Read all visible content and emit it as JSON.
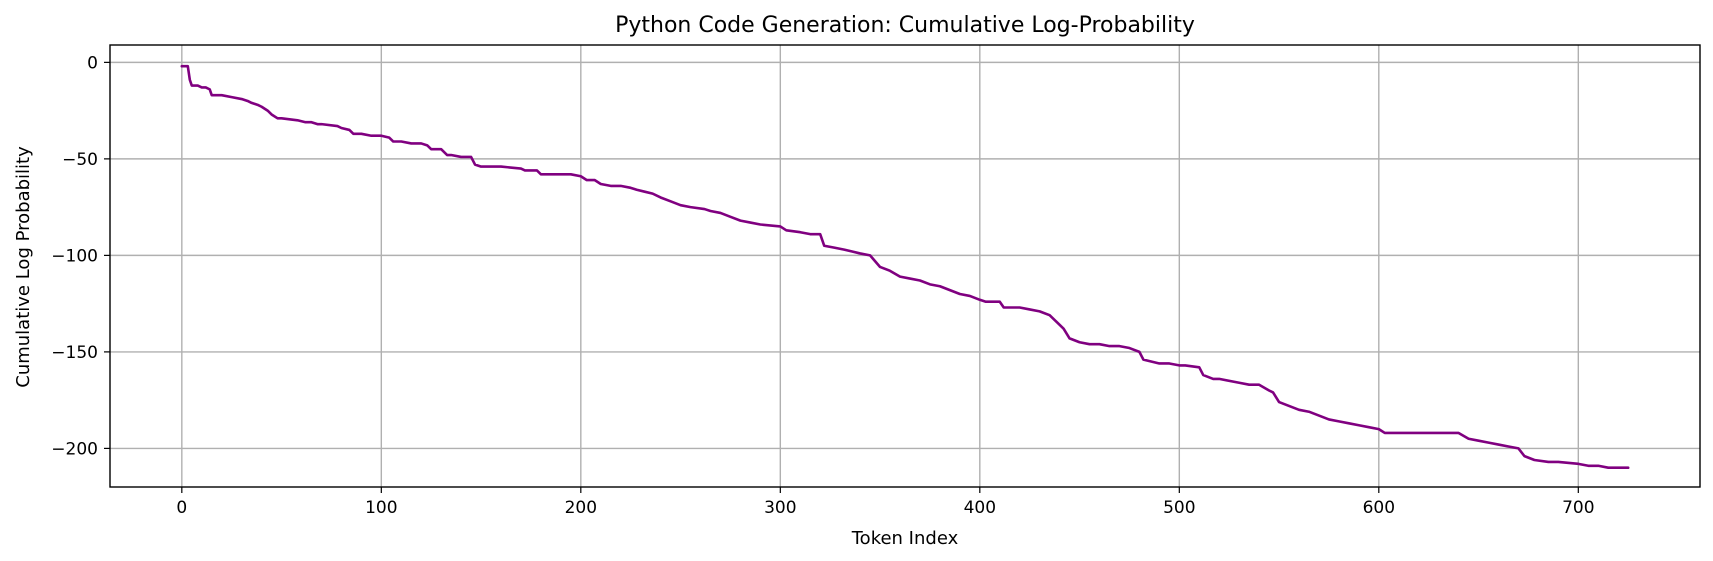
{
  "chart_data": {
    "type": "line",
    "title": "Python Code Generation: Cumulative Log-Probability",
    "xlabel": "Token Index",
    "ylabel": "Cumulative Log Probability",
    "xlim": [
      -36,
      761
    ],
    "ylim": [
      -220,
      9
    ],
    "xticks": [
      0,
      100,
      200,
      300,
      400,
      500,
      600,
      700
    ],
    "yticks": [
      0,
      -50,
      -100,
      -150,
      -200
    ],
    "grid": true,
    "legend": "none",
    "colors": {
      "line": "#800080"
    },
    "series": [
      {
        "x": [
          0,
          2,
          3,
          4,
          5,
          6,
          7,
          8,
          10,
          12,
          14,
          15,
          20,
          25,
          30,
          33,
          35,
          38,
          40,
          43,
          45,
          48,
          50,
          58,
          62,
          65,
          68,
          70,
          78,
          80,
          84,
          86,
          90,
          95,
          100,
          104,
          106,
          110,
          115,
          120,
          123,
          125,
          130,
          133,
          135,
          140,
          145,
          147,
          150,
          160,
          170,
          172,
          178,
          180,
          185,
          190,
          195,
          200,
          203,
          207,
          210,
          215,
          220,
          225,
          228,
          232,
          236,
          240,
          245,
          250,
          255,
          262,
          265,
          270,
          275,
          280,
          285,
          290,
          300,
          303,
          310,
          315,
          320,
          322,
          327,
          332,
          336,
          340,
          345,
          350,
          355,
          360,
          365,
          370,
          375,
          380,
          385,
          390,
          395,
          400,
          403,
          410,
          412,
          420,
          425,
          430,
          435,
          440,
          442,
          445,
          450,
          455,
          460,
          465,
          470,
          475,
          480,
          482,
          490,
          495,
          500,
          503,
          510,
          512,
          517,
          520,
          530,
          535,
          540,
          545,
          547,
          550,
          555,
          560,
          565,
          570,
          575,
          580,
          585,
          590,
          595,
          600,
          603,
          610,
          620,
          630,
          640,
          645,
          650,
          655,
          660,
          665,
          670,
          673,
          678,
          685,
          690,
          700,
          705,
          710,
          715,
          720,
          725
        ],
        "y": [
          -2,
          -2,
          -2,
          -9,
          -12,
          -12,
          -12,
          -12,
          -13,
          -13,
          -14,
          -17,
          -17,
          -18,
          -19,
          -20,
          -21,
          -22,
          -23,
          -25,
          -27,
          -29,
          -29,
          -30,
          -31,
          -31,
          -32,
          -32,
          -33,
          -34,
          -35,
          -37,
          -37,
          -38,
          -38,
          -39,
          -41,
          -41,
          -42,
          -42,
          -43,
          -45,
          -45,
          -48,
          -48,
          -49,
          -49,
          -53,
          -54,
          -54,
          -55,
          -56,
          -56,
          -58,
          -58,
          -58,
          -58,
          -59,
          -61,
          -61,
          -63,
          -64,
          -64,
          -65,
          -66,
          -67,
          -68,
          -70,
          -72,
          -74,
          -75,
          -76,
          -77,
          -78,
          -80,
          -82,
          -83,
          -84,
          -85,
          -87,
          -88,
          -89,
          -89,
          -95,
          -96,
          -97,
          -98,
          -99,
          -100,
          -106,
          -108,
          -111,
          -112,
          -113,
          -115,
          -116,
          -118,
          -120,
          -121,
          -123,
          -124,
          -124,
          -127,
          -127,
          -128,
          -129,
          -131,
          -136,
          -138,
          -143,
          -145,
          -146,
          -146,
          -147,
          -147,
          -148,
          -150,
          -154,
          -156,
          -156,
          -157,
          -157,
          -158,
          -162,
          -164,
          -164,
          -166,
          -167,
          -167,
          -170,
          -171,
          -176,
          -178,
          -180,
          -181,
          -183,
          -185,
          -186,
          -187,
          -188,
          -189,
          -190,
          -192,
          -192,
          -192,
          -192,
          -192,
          -195,
          -196,
          -197,
          -198,
          -199,
          -200,
          -204,
          -206,
          -207,
          -207,
          -208,
          -209,
          -209,
          -210,
          -210,
          -210
        ]
      }
    ]
  }
}
